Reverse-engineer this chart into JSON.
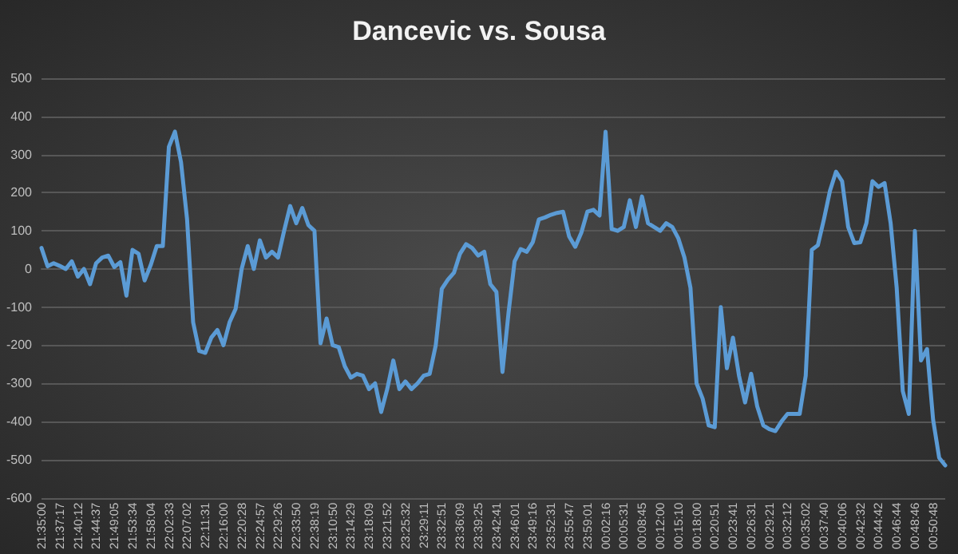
{
  "chart_data": {
    "type": "line",
    "title": "Dancevic vs. Sousa",
    "categories": [
      "21:35:00",
      null,
      null,
      "21:37:17",
      null,
      null,
      "21:40:12",
      null,
      null,
      "21:44:37",
      null,
      null,
      "21:49:05",
      null,
      null,
      "21:53:34",
      null,
      null,
      "21:58:04",
      null,
      null,
      "22:02:33",
      null,
      null,
      "22:07:02",
      null,
      null,
      "22:11:31",
      null,
      null,
      "22:16:00",
      null,
      null,
      "22:20:28",
      null,
      null,
      "22:24:57",
      null,
      null,
      "22:29:26",
      null,
      null,
      "22:33:50",
      null,
      null,
      "22:38:19",
      null,
      null,
      "23:10:50",
      null,
      null,
      "23:14:29",
      null,
      null,
      "23:18:09",
      null,
      null,
      "23:21:52",
      null,
      null,
      "23:25:32",
      null,
      null,
      "23:29:11",
      null,
      null,
      "23:32:51",
      null,
      null,
      "23:36:09",
      null,
      null,
      "23:39:25",
      null,
      null,
      "23:42:41",
      null,
      null,
      "23:46:01",
      null,
      null,
      "23:49:16",
      null,
      null,
      "23:52:31",
      null,
      null,
      "23:55:47",
      null,
      null,
      "23:59:01",
      null,
      null,
      "00:02:16",
      null,
      null,
      "00:05:31",
      null,
      null,
      "00:08:45",
      null,
      null,
      "00:12:00",
      null,
      null,
      "00:15:10",
      null,
      null,
      "00:18:00",
      null,
      null,
      "00:20:51",
      null,
      null,
      "00:23:41",
      null,
      null,
      "00:26:31",
      null,
      null,
      "00:29:21",
      null,
      null,
      "00:32:12",
      null,
      null,
      "00:35:02",
      null,
      null,
      "00:37:40",
      null,
      null,
      "00:40:06",
      null,
      null,
      "00:42:32",
      null,
      null,
      "00:44:42",
      null,
      null,
      "00:46:44",
      null,
      null,
      "00:48:46",
      null,
      null,
      "00:50:48",
      null,
      null
    ],
    "series": [
      {
        "color": "#5b9bd5",
        "values": [
          55,
          7,
          15,
          8,
          0,
          20,
          -20,
          0,
          -40,
          15,
          30,
          35,
          5,
          18,
          -70,
          50,
          40,
          -30,
          10,
          60,
          60,
          320,
          360,
          280,
          130,
          -140,
          -215,
          -220,
          -180,
          -160,
          -200,
          -140,
          -105,
          0,
          60,
          0,
          75,
          30,
          45,
          30,
          100,
          165,
          120,
          160,
          115,
          100,
          -195,
          -130,
          -200,
          -205,
          -255,
          -285,
          -275,
          -280,
          -315,
          -300,
          -375,
          -315,
          -240,
          -315,
          -295,
          -315,
          -300,
          -280,
          -275,
          -200,
          -52,
          -28,
          -10,
          40,
          65,
          55,
          35,
          45,
          -40,
          -60,
          -270,
          -115,
          20,
          52,
          45,
          70,
          130,
          135,
          142,
          147,
          150,
          85,
          58,
          95,
          150,
          155,
          140,
          360,
          105,
          100,
          110,
          180,
          110,
          190,
          120,
          110,
          100,
          120,
          110,
          80,
          30,
          -50,
          -300,
          -340,
          -410,
          -415,
          -100,
          -260,
          -180,
          -280,
          -350,
          -275,
          -360,
          -410,
          -420,
          -425,
          -400,
          -380,
          -380,
          -380,
          -280,
          50,
          62,
          130,
          205,
          255,
          230,
          110,
          68,
          70,
          120,
          230,
          215,
          225,
          120,
          -50,
          -320,
          -380,
          100,
          -240,
          -210,
          -395,
          -495,
          -515
        ]
      }
    ],
    "ylim": [
      -600,
      500
    ],
    "yticks": [
      -600,
      -500,
      -400,
      -300,
      -200,
      -100,
      0,
      100,
      200,
      300,
      400,
      500
    ],
    "grid": "y",
    "marker": "none",
    "line_style": "solid"
  }
}
